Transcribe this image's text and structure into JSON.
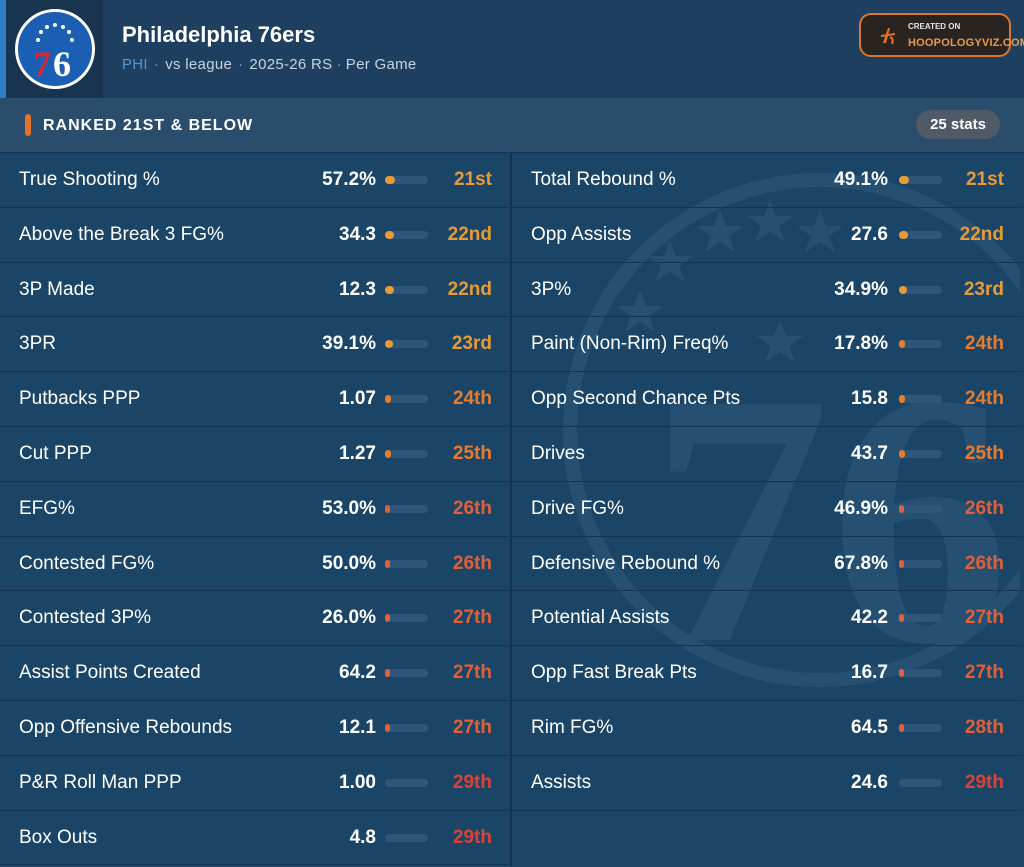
{
  "header": {
    "team_name": "Philadelphia 76ers",
    "abbr": "PHI",
    "context": "vs league",
    "season": "2025-26 RS",
    "mode": "Per Game",
    "logo_text": "76",
    "credit_small": "CREATED ON",
    "credit_site": "HOOPOLOGYVIZ.COM"
  },
  "section": {
    "title": "RANKED 21ST & BELOW",
    "count_label": "25 stats"
  },
  "colors": {
    "rank_21_23": "#e89a35",
    "rank_24_25": "#e77c2e",
    "rank_26_28": "#e0603a",
    "rank_29": "#d94335",
    "accent": "#e8712a"
  },
  "left_stats": [
    {
      "name": "True Shooting %",
      "value": "57.2%",
      "rank": "21st",
      "pct": 0.24,
      "color": "#e89a35"
    },
    {
      "name": "Above the Break 3 FG%",
      "value": "34.3",
      "rank": "22nd",
      "pct": 0.21,
      "color": "#e89a35"
    },
    {
      "name": "3P Made",
      "value": "12.3",
      "rank": "22nd",
      "pct": 0.21,
      "color": "#e89a35"
    },
    {
      "name": "3PR",
      "value": "39.1%",
      "rank": "23rd",
      "pct": 0.18,
      "color": "#e89a35"
    },
    {
      "name": "Putbacks PPP",
      "value": "1.07",
      "rank": "24th",
      "pct": 0.15,
      "color": "#e77c2e"
    },
    {
      "name": "Cut PPP",
      "value": "1.27",
      "rank": "25th",
      "pct": 0.13,
      "color": "#e77c2e"
    },
    {
      "name": "EFG%",
      "value": "53.0%",
      "rank": "26th",
      "pct": 0.11,
      "color": "#e0603a"
    },
    {
      "name": "Contested FG%",
      "value": "50.0%",
      "rank": "26th",
      "pct": 0.11,
      "color": "#e0603a"
    },
    {
      "name": "Contested 3P%",
      "value": "26.0%",
      "rank": "27th",
      "pct": 0.08,
      "color": "#e0603a"
    },
    {
      "name": "Assist Points Created",
      "value": "64.2",
      "rank": "27th",
      "pct": 0.08,
      "color": "#e0603a"
    },
    {
      "name": "Opp Offensive Rebounds",
      "value": "12.1",
      "rank": "27th",
      "pct": 0.08,
      "color": "#e0603a"
    },
    {
      "name": "P&R Roll Man PPP",
      "value": "1.00",
      "rank": "29th",
      "pct": 0.0,
      "color": "#d94335"
    },
    {
      "name": "Box Outs",
      "value": "4.8",
      "rank": "29th",
      "pct": 0.0,
      "color": "#d94335"
    }
  ],
  "right_stats": [
    {
      "name": "Total Rebound %",
      "value": "49.1%",
      "rank": "21st",
      "pct": 0.24,
      "color": "#e89a35"
    },
    {
      "name": "Opp Assists",
      "value": "27.6",
      "rank": "22nd",
      "pct": 0.21,
      "color": "#e89a35"
    },
    {
      "name": "3P%",
      "value": "34.9%",
      "rank": "23rd",
      "pct": 0.18,
      "color": "#e89a35"
    },
    {
      "name": "Paint (Non-Rim) Freq%",
      "value": "17.8%",
      "rank": "24th",
      "pct": 0.15,
      "color": "#e77c2e"
    },
    {
      "name": "Opp Second Chance Pts",
      "value": "15.8",
      "rank": "24th",
      "pct": 0.15,
      "color": "#e77c2e"
    },
    {
      "name": "Drives",
      "value": "43.7",
      "rank": "25th",
      "pct": 0.13,
      "color": "#e77c2e"
    },
    {
      "name": "Drive FG%",
      "value": "46.9%",
      "rank": "26th",
      "pct": 0.11,
      "color": "#e0603a"
    },
    {
      "name": "Defensive Rebound %",
      "value": "67.8%",
      "rank": "26th",
      "pct": 0.11,
      "color": "#e0603a"
    },
    {
      "name": "Potential Assists",
      "value": "42.2",
      "rank": "27th",
      "pct": 0.08,
      "color": "#e0603a"
    },
    {
      "name": "Opp Fast Break Pts",
      "value": "16.7",
      "rank": "27th",
      "pct": 0.08,
      "color": "#e0603a"
    },
    {
      "name": "Rim FG%",
      "value": "64.5",
      "rank": "28th",
      "pct": 0.05,
      "color": "#e0603a"
    },
    {
      "name": "Assists",
      "value": "24.6",
      "rank": "29th",
      "pct": 0.0,
      "color": "#d94335"
    }
  ]
}
